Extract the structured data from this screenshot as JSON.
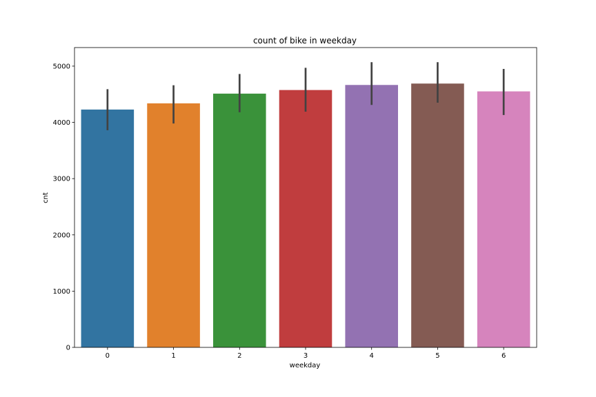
{
  "chart_data": {
    "type": "bar",
    "title": "count of bike in weekday",
    "xlabel": "weekday",
    "ylabel": "cnt",
    "categories": [
      "0",
      "1",
      "2",
      "3",
      "4",
      "5",
      "6"
    ],
    "values": [
      4228,
      4338,
      4511,
      4575,
      4665,
      4690,
      4551
    ],
    "error_low": [
      3860,
      3980,
      4180,
      4190,
      4310,
      4350,
      4130
    ],
    "error_high": [
      4590,
      4660,
      4860,
      4970,
      5070,
      5070,
      4950
    ],
    "colors": [
      "#3274a1",
      "#e1812c",
      "#3a923a",
      "#c03d3e",
      "#9372b2",
      "#845b53",
      "#d684bd"
    ],
    "ylim": [
      0,
      5330
    ],
    "yticks": [
      0,
      1000,
      2000,
      3000,
      4000,
      5000
    ],
    "grid": false,
    "errorbar_color": "#424242"
  }
}
